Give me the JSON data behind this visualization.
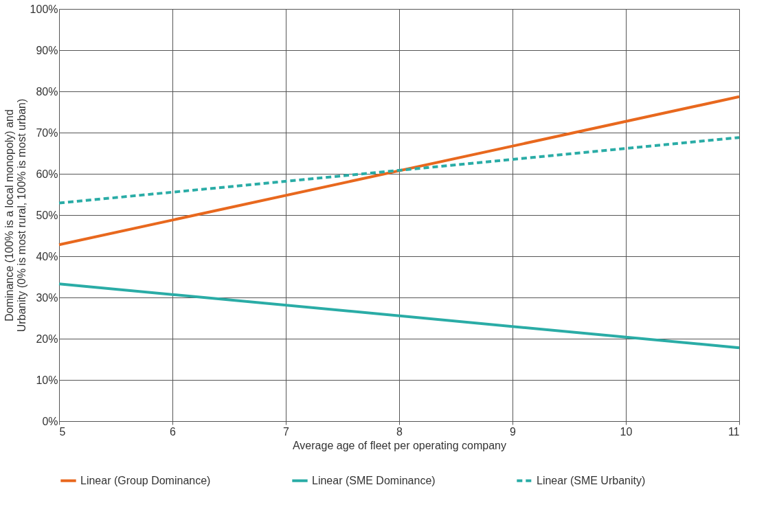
{
  "chart_data": {
    "type": "line",
    "xlabel": "Average age of fleet per operating company",
    "ylabel": "Dominance (100% is a local monopoly) and\nUrbanity (0% is most rural, 100% is most urban)",
    "x": [
      5,
      11
    ],
    "xlim": [
      5,
      11
    ],
    "xticks": [
      5,
      6,
      7,
      8,
      9,
      10,
      11
    ],
    "ylim": [
      0,
      100
    ],
    "yticks": [
      {
        "value": 0,
        "label": "0%"
      },
      {
        "value": 10,
        "label": "10%"
      },
      {
        "value": 20,
        "label": "20%"
      },
      {
        "value": 30,
        "label": "30%"
      },
      {
        "value": 40,
        "label": "40%"
      },
      {
        "value": 50,
        "label": "50%"
      },
      {
        "value": 60,
        "label": "60%"
      },
      {
        "value": 70,
        "label": "70%"
      },
      {
        "value": 80,
        "label": "80%"
      },
      {
        "value": 90,
        "label": "90%"
      },
      {
        "value": 100,
        "label": "100%"
      }
    ],
    "series": [
      {
        "name": "Linear (Group Dominance)",
        "color": "#e8681e",
        "line_style": "solid",
        "values": [
          42.8,
          78.7
        ]
      },
      {
        "name": "Linear (SME Dominance)",
        "color": "#2aaca6",
        "line_style": "solid",
        "values": [
          33.3,
          17.8
        ]
      },
      {
        "name": "Linear (SME Urbanity)",
        "color": "#2aaca6",
        "line_style": "dashed",
        "values": [
          52.9,
          68.8
        ]
      }
    ],
    "grid": true,
    "legend": "bottom",
    "marker": "none"
  }
}
